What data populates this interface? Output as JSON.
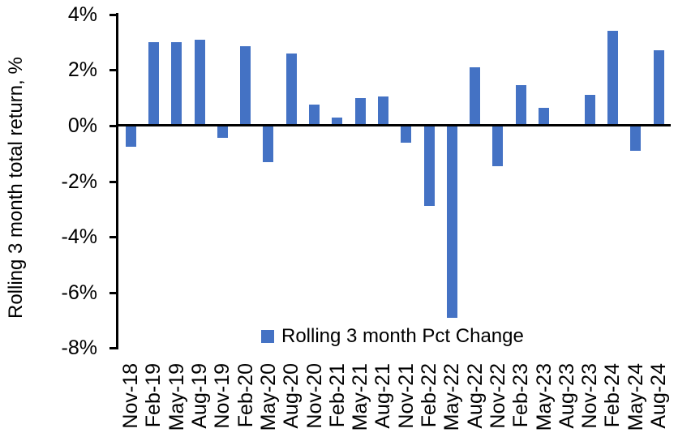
{
  "chart_data": {
    "type": "bar",
    "title": "",
    "ylabel": "Rolling 3 month total return, %",
    "xlabel": "",
    "categories": [
      "Nov-18",
      "Feb-19",
      "May-19",
      "Aug-19",
      "Nov-19",
      "Feb-20",
      "May-20",
      "Aug-20",
      "Nov-20",
      "Feb-21",
      "May-21",
      "Aug-21",
      "Nov-21",
      "Feb-22",
      "May-22",
      "Aug-22",
      "Nov-22",
      "Feb-23",
      "May-23",
      "Aug-23",
      "Nov-23",
      "Feb-24",
      "May-24",
      "Aug-24"
    ],
    "values": [
      -0.75,
      3.0,
      3.0,
      3.1,
      -0.45,
      2.85,
      -1.3,
      2.6,
      0.75,
      0.3,
      1.0,
      1.05,
      -0.6,
      -2.9,
      -6.9,
      2.1,
      -1.45,
      1.45,
      0.65,
      0.0,
      1.1,
      3.4,
      -0.9,
      2.7
    ],
    "series_name": "Rolling 3 month Pct Change",
    "ylim": [
      -8,
      4
    ],
    "yticks": [
      4,
      2,
      0,
      -2,
      -4,
      -6,
      -8
    ],
    "ytick_labels": [
      "4%",
      "2%",
      "0%",
      "-2%",
      "-4%",
      "-6%",
      "-8%"
    ],
    "grid": false,
    "legend_position": "bottom-inside",
    "colors": {
      "bar": "#4472C4",
      "axis": "#000000",
      "background": "#FFFFFF"
    },
    "legend": {
      "label": "Rolling 3 month Pct Change"
    }
  }
}
